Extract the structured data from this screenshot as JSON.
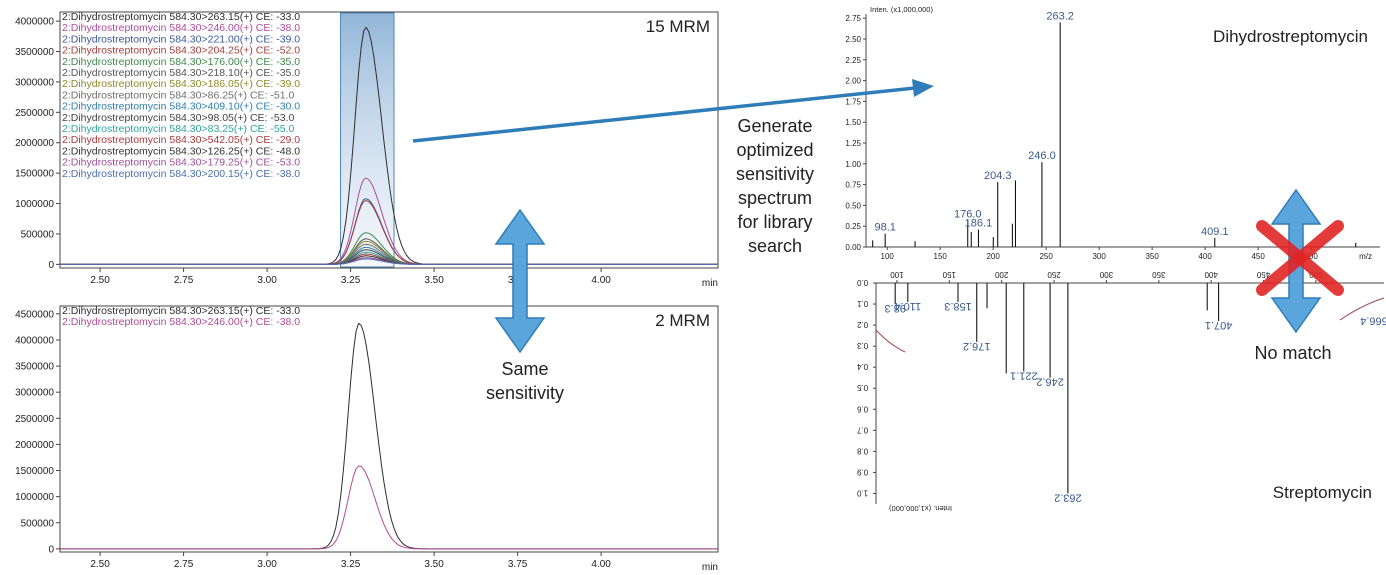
{
  "colors": {
    "arrow_blue": "#2e7db8",
    "arrow_blue_light": "#5aa6dc",
    "cross_red": "#e02525",
    "spectrum_line": "#000000",
    "peak_label": "#3a5a8c"
  },
  "chart_data": [
    {
      "type": "line",
      "xlabel": "min",
      "x_ticks": [
        "2.50",
        "2.75",
        "3.00",
        "3.25",
        "3.50",
        "3.75",
        "4.00"
      ],
      "y_ticks": [
        "0",
        "500000",
        "1000000",
        "1500000",
        "2000000",
        "2500000",
        "3000000",
        "3500000",
        "4000000"
      ],
      "xlim": [
        2.38,
        4.35
      ],
      "ylim": [
        -60000,
        4150000
      ],
      "annotation": "15 MRM",
      "highlight_range": [
        3.22,
        3.38
      ],
      "series": [
        {
          "name": "2:Dihydrostreptomycin 584.30>263.15(+) CE: -33.0",
          "color": "#2e2e2e",
          "peak_x": 3.295,
          "peak_y": 3900000
        },
        {
          "name": "2:Dihydrostreptomycin 584.30>246.00(+) CE: -38.0",
          "color": "#b04b9a",
          "peak_x": 3.295,
          "peak_y": 1420000
        },
        {
          "name": "2:Dihydrostreptomycin 584.30>221.00(+) CE: -39.0",
          "color": "#3d5a9a",
          "peak_x": 3.295,
          "peak_y": 1080000
        },
        {
          "name": "2:Dihydrostreptomycin 584.30>204.25(+) CE: -52.0",
          "color": "#a64040",
          "peak_x": 3.295,
          "peak_y": 1050000
        },
        {
          "name": "2:Dihydrostreptomycin 584.30>176.00(+) CE: -35.0",
          "color": "#3f8a4a",
          "peak_x": 3.295,
          "peak_y": 520000
        },
        {
          "name": "2:Dihydrostreptomycin 584.30>218.10(+) CE: -35.0",
          "color": "#555555",
          "peak_x": 3.295,
          "peak_y": 420000
        },
        {
          "name": "2:Dihydrostreptomycin 584.30>186.05(+) CE: -39.0",
          "color": "#8c8a2a",
          "peak_x": 3.295,
          "peak_y": 380000
        },
        {
          "name": "2:Dihydrostreptomycin 584.30>86.25(+) CE: -51.0",
          "color": "#6f6f6f",
          "peak_x": 3.295,
          "peak_y": 330000
        },
        {
          "name": "2:Dihydrostreptomycin 584.30>409.10(+) CE: -30.0",
          "color": "#2f7fb0",
          "peak_x": 3.295,
          "peak_y": 280000
        },
        {
          "name": "2:Dihydrostreptomycin 584.30>98.05(+) CE: -53.0",
          "color": "#444444",
          "peak_x": 3.295,
          "peak_y": 240000
        },
        {
          "name": "2:Dihydrostreptomycin 584.30>83.25(+) CE: -55.0",
          "color": "#2fa59c",
          "peak_x": 3.295,
          "peak_y": 200000
        },
        {
          "name": "2:Dihydrostreptomycin 584.30>542.05(+) CE: -29.0",
          "color": "#b03a3a",
          "peak_x": 3.295,
          "peak_y": 170000
        },
        {
          "name": "2:Dihydrostreptomycin 584.30>126.25(+) CE: -48.0",
          "color": "#333333",
          "peak_x": 3.295,
          "peak_y": 140000
        },
        {
          "name": "2:Dihydrostreptomycin 584.30>179.25(+) CE: -53.0",
          "color": "#a0509a",
          "peak_x": 3.295,
          "peak_y": 110000
        },
        {
          "name": "2:Dihydrostreptomycin 584.30>200.15(+) CE: -38.0",
          "color": "#4a6fb0",
          "peak_x": 3.295,
          "peak_y": 90000
        }
      ]
    },
    {
      "type": "line",
      "xlabel": "min",
      "x_ticks": [
        "2.50",
        "2.75",
        "3.00",
        "3.25",
        "3.50",
        "3.75",
        "4.00"
      ],
      "y_ticks": [
        "0",
        "500000",
        "1000000",
        "1500000",
        "2000000",
        "2500000",
        "3000000",
        "3500000",
        "4000000",
        "4500000"
      ],
      "xlim": [
        2.38,
        4.35
      ],
      "ylim": [
        -60000,
        4650000
      ],
      "annotation": "2 MRM",
      "series": [
        {
          "name": "2:Dihydrostreptomycin 584.30>263.15(+) CE: -33.0",
          "color": "#2e2e2e",
          "peak_x": 3.275,
          "peak_y": 4320000
        },
        {
          "name": "2:Dihydrostreptomycin 584.30>246.00(+) CE: -38.0",
          "color": "#b04b9a",
          "peak_x": 3.275,
          "peak_y": 1590000
        }
      ]
    },
    {
      "type": "bar",
      "title": "Dihydrostreptomycin",
      "ylabel": "Inten. (x1,000,000)",
      "xlabel": "m/z",
      "y_ticks": [
        "0.00",
        "0.25",
        "0.50",
        "0.75",
        "1.00",
        "1.25",
        "1.50",
        "1.75",
        "2.00",
        "2.25",
        "2.50",
        "2.75"
      ],
      "x_ticks": [
        "100",
        "150",
        "200",
        "250",
        "300",
        "350",
        "400",
        "450",
        "500"
      ],
      "xlim": [
        80,
        565
      ],
      "ylim": [
        0,
        2.8
      ],
      "peaks": [
        {
          "mz": 86.3,
          "i": 0.08
        },
        {
          "mz": 98.1,
          "i": 0.16
        },
        {
          "mz": 126.3,
          "i": 0.07
        },
        {
          "mz": 176.0,
          "i": 0.32
        },
        {
          "mz": 179.3,
          "i": 0.18
        },
        {
          "mz": 186.1,
          "i": 0.21
        },
        {
          "mz": 200.1,
          "i": 0.12
        },
        {
          "mz": 204.3,
          "i": 0.78
        },
        {
          "mz": 218.1,
          "i": 0.28
        },
        {
          "mz": 221.0,
          "i": 0.8
        },
        {
          "mz": 246.0,
          "i": 1.02
        },
        {
          "mz": 263.2,
          "i": 2.7
        },
        {
          "mz": 409.1,
          "i": 0.11
        },
        {
          "mz": 542.1,
          "i": 0.05
        }
      ],
      "labels": [
        {
          "mz": 98.1,
          "i": 0.16,
          "text": "98.1"
        },
        {
          "mz": 176.0,
          "i": 0.32,
          "text": "176.0"
        },
        {
          "mz": 186.1,
          "i": 0.21,
          "text": "186.1"
        },
        {
          "mz": 204.3,
          "i": 0.78,
          "text": "204.3"
        },
        {
          "mz": 246.0,
          "i": 1.02,
          "text": "246.0"
        },
        {
          "mz": 263.2,
          "i": 2.7,
          "text": "263.2"
        },
        {
          "mz": 409.1,
          "i": 0.11,
          "text": "409.1"
        }
      ]
    },
    {
      "type": "bar",
      "title": "Streptomycin",
      "ylabel": "Inten. (x1,000,000)",
      "xlabel": "m/z",
      "y_ticks": [
        "0.0",
        "0.1",
        "0.2",
        "0.3",
        "0.4",
        "0.5",
        "0.6",
        "0.7",
        "0.8",
        "0.9",
        "1.0"
      ],
      "x_ticks": [
        "100",
        "150",
        "200",
        "250",
        "300",
        "350",
        "400",
        "450",
        "500"
      ],
      "xlim": [
        80,
        565
      ],
      "ylim": [
        0,
        1.05
      ],
      "peaks": [
        {
          "mz": 98.3,
          "i": 0.1
        },
        {
          "mz": 110.4,
          "i": 0.09
        },
        {
          "mz": 158.3,
          "i": 0.09
        },
        {
          "mz": 176.2,
          "i": 0.28
        },
        {
          "mz": 186.0,
          "i": 0.12
        },
        {
          "mz": 204.3,
          "i": 0.43
        },
        {
          "mz": 221.1,
          "i": 0.42
        },
        {
          "mz": 246.2,
          "i": 0.45
        },
        {
          "mz": 263.2,
          "i": 1.0
        },
        {
          "mz": 396.2,
          "i": 0.13
        },
        {
          "mz": 407.1,
          "i": 0.18
        }
      ],
      "labels": [
        {
          "mz": 98.3,
          "i": 0.1,
          "text": "98.3"
        },
        {
          "mz": 110.4,
          "i": 0.09,
          "text": "110.4"
        },
        {
          "mz": 158.3,
          "i": 0.09,
          "text": "158.3"
        },
        {
          "mz": 176.2,
          "i": 0.28,
          "text": "176.2"
        },
        {
          "mz": 221.1,
          "i": 0.42,
          "text": "221.1"
        },
        {
          "mz": 246.2,
          "i": 0.45,
          "text": "246.2"
        },
        {
          "mz": 263.2,
          "i": 1.0,
          "text": "263.2"
        },
        {
          "mz": 407.1,
          "i": 0.18,
          "text": "407.1"
        },
        {
          "mz": 566.4,
          "i": 0.16,
          "text": "566.4"
        }
      ]
    }
  ],
  "callouts": {
    "generate": [
      "Generate",
      "optimized",
      "sensitivity",
      "spectrum",
      "for library",
      "search"
    ],
    "same": [
      "Same",
      "sensitivity"
    ],
    "no_match": "No match"
  }
}
